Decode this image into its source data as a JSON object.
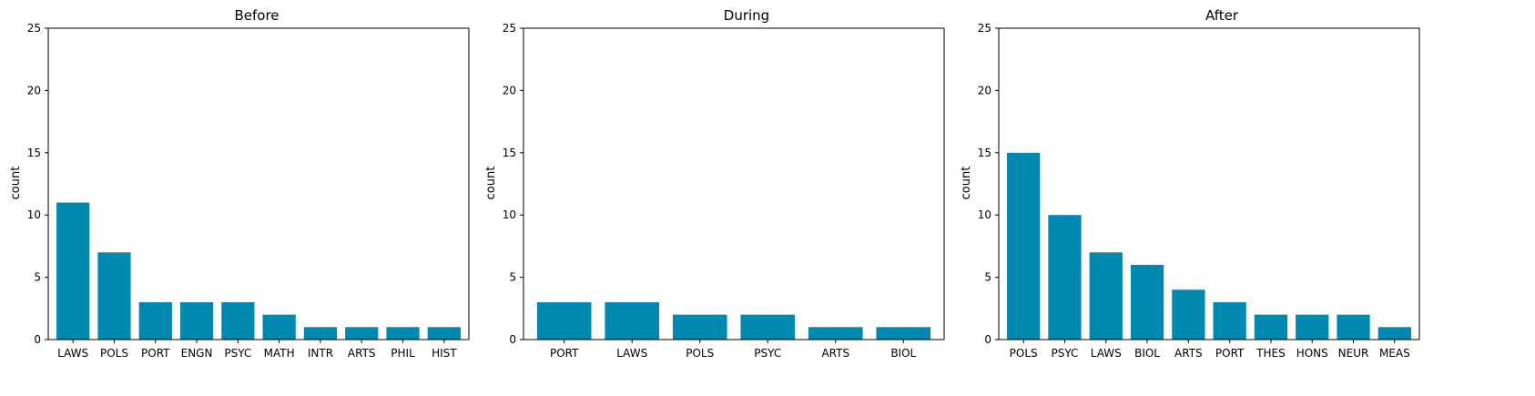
{
  "colors": {
    "bar": "#0088b0",
    "axis": "#000000"
  },
  "chart_data": [
    {
      "type": "bar",
      "title": "Before",
      "xlabel": "",
      "ylabel": "count",
      "ylim": [
        0,
        25
      ],
      "yticks": [
        0,
        5,
        10,
        15,
        20,
        25
      ],
      "categories": [
        "LAWS",
        "POLS",
        "PORT",
        "ENGN",
        "PSYC",
        "MATH",
        "INTR",
        "ARTS",
        "PHIL",
        "HIST"
      ],
      "values": [
        11,
        7,
        3,
        3,
        3,
        2,
        1,
        1,
        1,
        1
      ]
    },
    {
      "type": "bar",
      "title": "During",
      "xlabel": "",
      "ylabel": "count",
      "ylim": [
        0,
        25
      ],
      "yticks": [
        0,
        5,
        10,
        15,
        20,
        25
      ],
      "categories": [
        "PORT",
        "LAWS",
        "POLS",
        "PSYC",
        "ARTS",
        "BIOL"
      ],
      "values": [
        3,
        3,
        2,
        2,
        1,
        1
      ]
    },
    {
      "type": "bar",
      "title": "After",
      "xlabel": "",
      "ylabel": "count",
      "ylim": [
        0,
        25
      ],
      "yticks": [
        0,
        5,
        10,
        15,
        20,
        25
      ],
      "categories": [
        "POLS",
        "PSYC",
        "LAWS",
        "BIOL",
        "ARTS",
        "PORT",
        "THES",
        "HONS",
        "NEUR",
        "MEAS"
      ],
      "values": [
        15,
        10,
        7,
        6,
        4,
        3,
        2,
        2,
        2,
        1
      ]
    }
  ]
}
